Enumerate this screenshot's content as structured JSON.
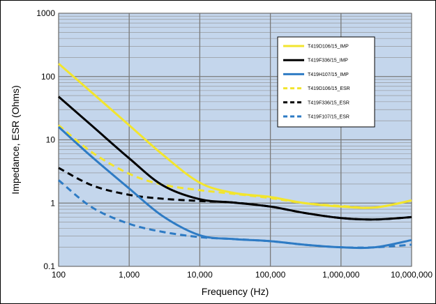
{
  "chart_data": {
    "type": "line",
    "xlabel": "Frequency (Hz)",
    "ylabel": "Impedance, ESR (Ohms)",
    "x_scale": "log",
    "y_scale": "log",
    "xlim": [
      100,
      10000000
    ],
    "ylim": [
      0.1,
      1000
    ],
    "x_ticks": [
      {
        "value": 100,
        "label": "100"
      },
      {
        "value": 1000,
        "label": "1,000"
      },
      {
        "value": 10000,
        "label": "10,000"
      },
      {
        "value": 100000,
        "label": "100,000"
      },
      {
        "value": 1000000,
        "label": "1,000,000"
      },
      {
        "value": 10000000,
        "label": "10,000,000"
      }
    ],
    "y_ticks": [
      {
        "value": 0.1,
        "label": "0.1"
      },
      {
        "value": 1,
        "label": "1"
      },
      {
        "value": 10,
        "label": "10"
      },
      {
        "value": 100,
        "label": "100"
      },
      {
        "value": 1000,
        "label": "1000"
      }
    ],
    "grid": true,
    "plot_background": "#c4d6ec",
    "legend_position": "top-right",
    "series": [
      {
        "name": "T419D106/15_IMP",
        "color": "#f2e52e",
        "dash": false,
        "x": [
          100,
          300,
          1000,
          3000,
          10000,
          30000,
          100000,
          300000,
          1000000,
          3000000,
          10000000
        ],
        "y": [
          160,
          55,
          17,
          5.8,
          2.1,
          1.45,
          1.25,
          1.0,
          0.88,
          0.85,
          1.1
        ]
      },
      {
        "name": "T419F336/15_IMP",
        "color": "#000000",
        "dash": false,
        "x": [
          100,
          300,
          1000,
          3000,
          10000,
          30000,
          100000,
          300000,
          1000000,
          3000000,
          10000000
        ],
        "y": [
          48,
          16.5,
          5.1,
          1.9,
          1.15,
          1.02,
          0.88,
          0.7,
          0.58,
          0.55,
          0.6
        ]
      },
      {
        "name": "T419H107/15_IMP",
        "color": "#2e7bc4",
        "dash": false,
        "x": [
          100,
          300,
          1000,
          3000,
          10000,
          30000,
          100000,
          300000,
          1000000,
          3000000,
          10000000
        ],
        "y": [
          16,
          5.3,
          1.7,
          0.62,
          0.31,
          0.27,
          0.25,
          0.22,
          0.2,
          0.2,
          0.26
        ]
      },
      {
        "name": "T419D106/15_ESR",
        "color": "#f2e52e",
        "dash": true,
        "x": [
          100,
          300,
          1000,
          3000,
          10000,
          30000,
          100000,
          300000,
          1000000,
          3000000,
          10000000
        ],
        "y": [
          17,
          6.3,
          2.9,
          1.95,
          1.6,
          1.4,
          1.2,
          1.0,
          0.9,
          0.85,
          1.1
        ]
      },
      {
        "name": "T419F336/15_ESR",
        "color": "#000000",
        "dash": true,
        "x": [
          100,
          300,
          1000,
          3000,
          10000,
          30000,
          100000,
          300000,
          1000000,
          3000000,
          10000000
        ],
        "y": [
          3.6,
          1.9,
          1.35,
          1.17,
          1.08,
          1.02,
          0.88,
          0.7,
          0.58,
          0.55,
          0.6
        ]
      },
      {
        "name": "T419F107/15_ESR",
        "color": "#2e7bc4",
        "dash": true,
        "x": [
          100,
          300,
          1000,
          3000,
          10000,
          30000,
          100000,
          300000,
          1000000,
          3000000,
          10000000
        ],
        "y": [
          2.3,
          0.85,
          0.47,
          0.35,
          0.29,
          0.27,
          0.25,
          0.22,
          0.2,
          0.2,
          0.22
        ]
      }
    ]
  }
}
